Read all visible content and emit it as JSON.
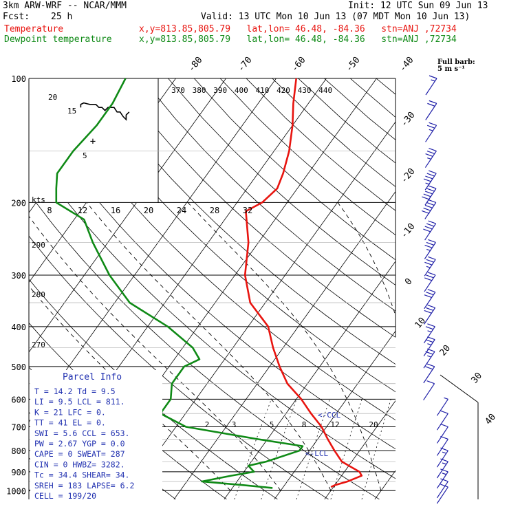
{
  "header": {
    "model": "3km ARW-WRF -- NCAR/MMM",
    "init": "Init: 12 UTC Sun 09 Jun 13",
    "fcst_label": "Fcst:",
    "fcst_value": "25 h",
    "valid": "Valid: 13 UTC Mon 10 Jun 13 (07 MDT Mon 10 Jun 13)",
    "temp_label": "Temperature",
    "dew_label": "Dewpoint temperature",
    "location": "x,y=813.85,805.79   lat,lon= 46.48, -84.36   stn=ANJ ,72734",
    "colors": {
      "temperature": "#e8140f",
      "dewpoint": "#0f8a16",
      "winds": "#2020a8",
      "parcel": "#2030b0"
    }
  },
  "chart_data": {
    "type": "line",
    "title": "",
    "ylabel": "",
    "ylim": [
      1000,
      100
    ],
    "y_scale": "log",
    "pressure_ticks": [
      "100",
      "200",
      "300",
      "400",
      "500",
      "600",
      "700",
      "800",
      "900",
      "1000"
    ],
    "skewed_temp_ticks": [
      "-80",
      "-70",
      "-60",
      "-50",
      "-40",
      "-30",
      "-20",
      "-10",
      "0",
      "10",
      "20",
      "30",
      "40"
    ],
    "hodograph_speed_ticks": [
      "8",
      "12",
      "16",
      "20",
      "24",
      "28",
      "32"
    ],
    "hodograph_unit": "kts",
    "hodograph_ring_labels": [
      "5",
      "10",
      "15",
      "20"
    ],
    "mixing_ratio_ticks": [
      "2",
      "3",
      "5",
      "8",
      "12",
      "20"
    ],
    "theta_ticks": [
      "370",
      "380",
      "390",
      "400",
      "410",
      "420",
      "430",
      "440"
    ],
    "theta_side_ticks": [
      "290",
      "280",
      "270"
    ],
    "wind_key": "Full barb:\n5 m s⁻¹",
    "series": [
      {
        "name": "Temperature",
        "color": "#e8140f",
        "points": [
          [
            100,
            -56
          ],
          [
            115,
            -53
          ],
          [
            130,
            -50
          ],
          [
            150,
            -47
          ],
          [
            170,
            -45
          ],
          [
            185,
            -44
          ],
          [
            200,
            -45
          ],
          [
            210,
            -47
          ],
          [
            250,
            -42
          ],
          [
            300,
            -38
          ],
          [
            350,
            -33
          ],
          [
            400,
            -26
          ],
          [
            450,
            -22
          ],
          [
            500,
            -18
          ],
          [
            550,
            -14
          ],
          [
            600,
            -9
          ],
          [
            650,
            -5
          ],
          [
            700,
            -1
          ],
          [
            750,
            2
          ],
          [
            800,
            5
          ],
          [
            850,
            8
          ],
          [
            880,
            11
          ],
          [
            900,
            13
          ],
          [
            920,
            14
          ],
          [
            950,
            12
          ],
          [
            970,
            10
          ],
          [
            980,
            9.5
          ]
        ]
      },
      {
        "name": "Dewpoint",
        "color": "#0f8a16",
        "points": [
          [
            100,
            -90
          ],
          [
            115,
            -89
          ],
          [
            130,
            -89
          ],
          [
            150,
            -90
          ],
          [
            170,
            -90
          ],
          [
            185,
            -88
          ],
          [
            200,
            -86
          ],
          [
            220,
            -78
          ],
          [
            250,
            -73
          ],
          [
            300,
            -65
          ],
          [
            350,
            -57
          ],
          [
            400,
            -46
          ],
          [
            450,
            -38
          ],
          [
            480,
            -35
          ],
          [
            500,
            -37
          ],
          [
            550,
            -37
          ],
          [
            600,
            -35
          ],
          [
            650,
            -35
          ],
          [
            700,
            -28
          ],
          [
            750,
            -12
          ],
          [
            780,
            -2
          ],
          [
            800,
            -2
          ],
          [
            850,
            -7
          ],
          [
            870,
            -10
          ],
          [
            900,
            -8
          ],
          [
            920,
            -12
          ],
          [
            950,
            -17
          ],
          [
            970,
            -8
          ],
          [
            985,
            -2
          ]
        ]
      }
    ],
    "hodograph_trace": [
      [
        -8,
        -4
      ],
      [
        -8,
        -6
      ],
      [
        -6,
        -7
      ],
      [
        -2,
        -6
      ],
      [
        2,
        -6
      ],
      [
        4,
        -4
      ],
      [
        6,
        -4
      ],
      [
        8,
        -2
      ],
      [
        10,
        -4
      ],
      [
        14,
        -4
      ],
      [
        16,
        -1
      ],
      [
        18,
        -1
      ],
      [
        20,
        2
      ],
      [
        22,
        4
      ],
      [
        22,
        1
      ],
      [
        24,
        -1
      ]
    ],
    "wind_barbs": [
      {
        "p": 100,
        "spd": 15
      },
      {
        "p": 115,
        "spd": 20
      },
      {
        "p": 130,
        "spd": 25
      },
      {
        "p": 150,
        "spd": 35
      },
      {
        "p": 170,
        "spd": 45
      },
      {
        "p": 185,
        "spd": 50
      },
      {
        "p": 200,
        "spd": 50
      },
      {
        "p": 225,
        "spd": 40
      },
      {
        "p": 250,
        "spd": 35
      },
      {
        "p": 275,
        "spd": 35
      },
      {
        "p": 300,
        "spd": 30
      },
      {
        "p": 330,
        "spd": 30
      },
      {
        "p": 360,
        "spd": 30
      },
      {
        "p": 400,
        "spd": 25
      },
      {
        "p": 430,
        "spd": 25
      },
      {
        "p": 460,
        "spd": 25
      },
      {
        "p": 500,
        "spd": 20
      },
      {
        "p": 550,
        "spd": 10
      },
      {
        "p": 600,
        "spd": 5
      },
      {
        "p": 650,
        "spd": 10
      },
      {
        "p": 700,
        "spd": 10
      },
      {
        "p": 750,
        "spd": 10
      },
      {
        "p": 800,
        "spd": 15
      },
      {
        "p": 850,
        "spd": 15
      },
      {
        "p": 900,
        "spd": 15
      },
      {
        "p": 950,
        "spd": 10
      },
      {
        "p": 980,
        "spd": 10
      }
    ],
    "annotations": [
      {
        "text": "<-CCL",
        "p": 655
      },
      {
        "text": "<-LCL",
        "p": 811
      }
    ]
  },
  "parcel_info": {
    "title": "Parcel Info",
    "rows": [
      "T  =   14.2 Td =   9.5",
      "LI =    9.5 LCL =  811.",
      "K  =     21 LFC =    0.",
      "TT =     41 EL  =    0.",
      "SWI =   5.6 CCL =  653.",
      "PW =   2.67 YGP =   0.0",
      "CAPE =    0 SWEAT=  287",
      "CIN =     0 HWBZ= 3282.",
      "Tc =   34.4 SHEAR=  34.",
      "SREH =  183 LAPSE=  6.2",
      "CELL = 199/20"
    ]
  }
}
